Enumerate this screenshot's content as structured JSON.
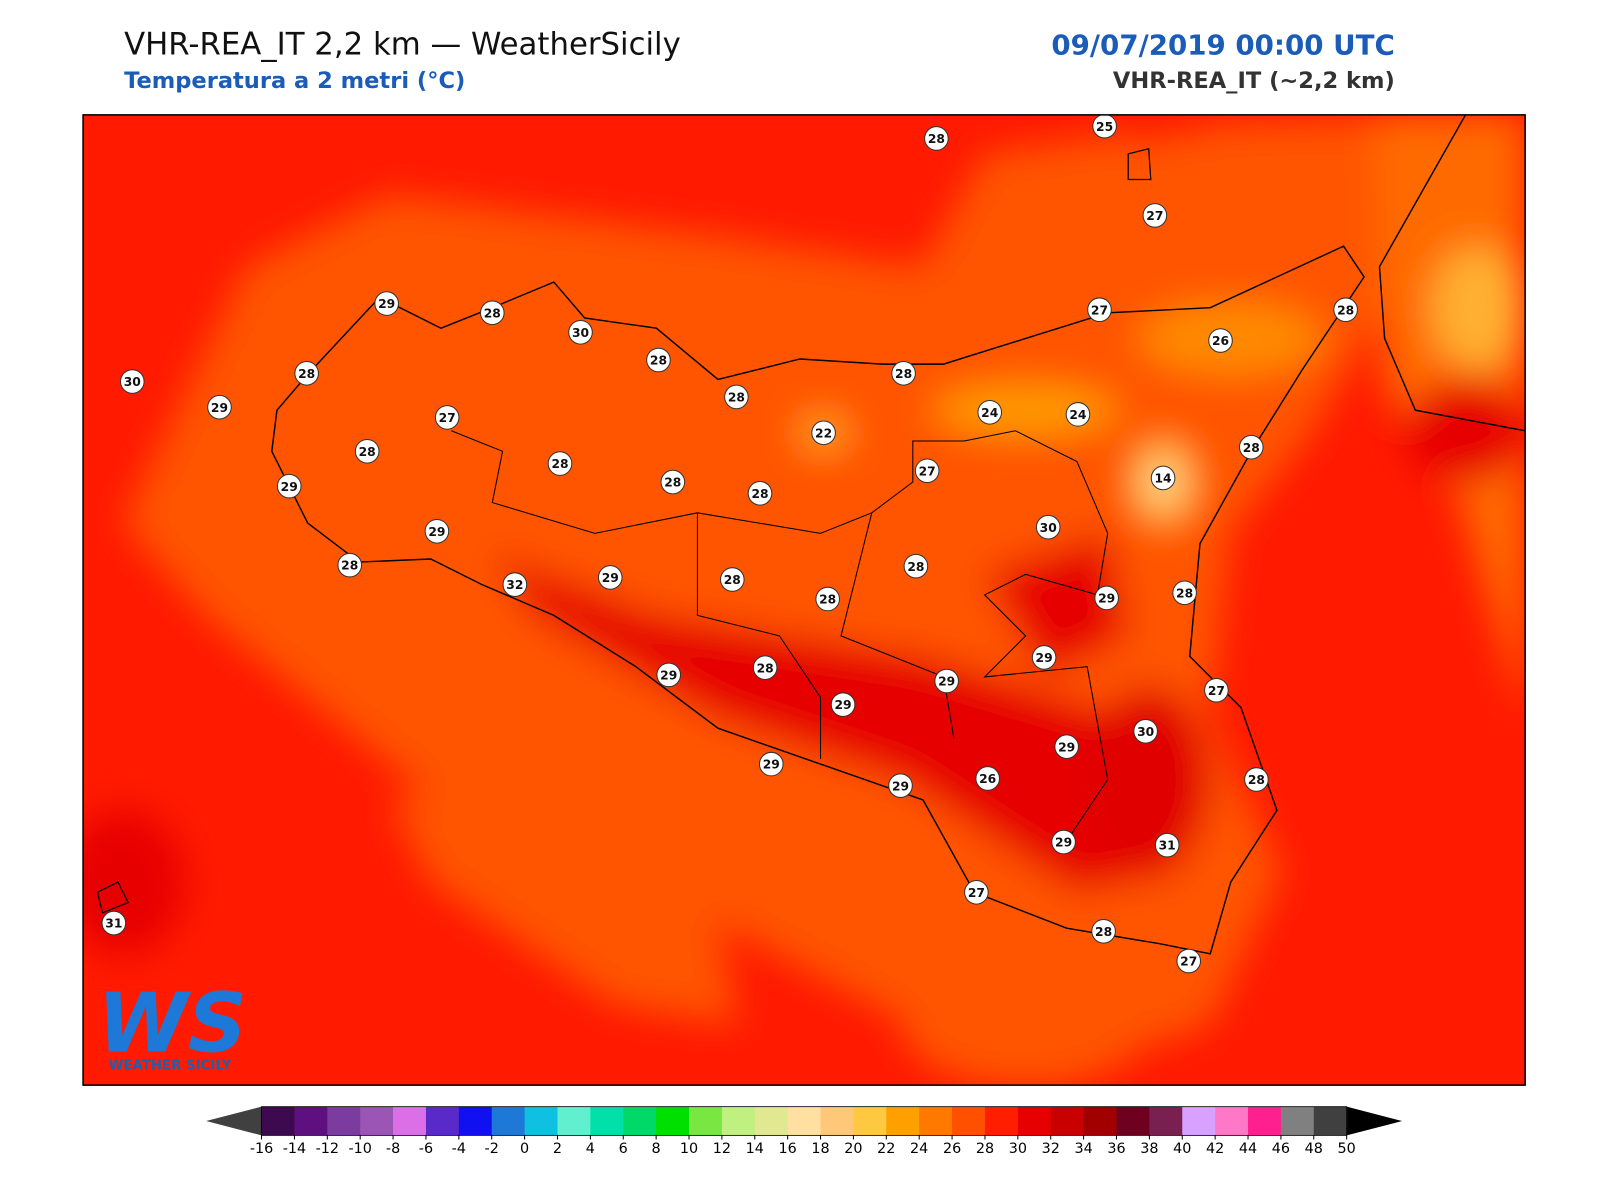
{
  "header": {
    "title": "VHR-REA_IT 2,2 km — WeatherSicily",
    "subtitle": "Temperatura a 2 metri (°C)",
    "date": "09/07/2019 00:00 UTC",
    "model": "VHR-REA_IT (~2,2 km)"
  },
  "logo": {
    "mark": "WS",
    "name": "WEATHER SICILY"
  },
  "stations": [
    {
      "value": 28
    },
    {
      "value": 25
    },
    {
      "value": 27
    },
    {
      "value": 29
    },
    {
      "value": 28
    },
    {
      "value": 30
    },
    {
      "value": 28
    },
    {
      "value": 30
    },
    {
      "value": 28
    },
    {
      "value": 29
    },
    {
      "value": 28
    },
    {
      "value": 28
    },
    {
      "value": 27
    },
    {
      "value": 26
    },
    {
      "value": 28
    },
    {
      "value": 24
    },
    {
      "value": 24
    },
    {
      "value": 22
    },
    {
      "value": 27
    },
    {
      "value": 28
    },
    {
      "value": 28
    },
    {
      "value": 28
    },
    {
      "value": 28
    },
    {
      "value": 27
    },
    {
      "value": 14
    },
    {
      "value": 28
    },
    {
      "value": 29
    },
    {
      "value": 29
    },
    {
      "value": 30
    },
    {
      "value": 28
    },
    {
      "value": 32
    },
    {
      "value": 29
    },
    {
      "value": 28
    },
    {
      "value": 28
    },
    {
      "value": 28
    },
    {
      "value": 29
    },
    {
      "value": 28
    },
    {
      "value": 29
    },
    {
      "value": 29
    },
    {
      "value": 28
    },
    {
      "value": 29
    },
    {
      "value": 29
    },
    {
      "value": 27
    },
    {
      "value": 29
    },
    {
      "value": 30
    },
    {
      "value": 29
    },
    {
      "value": 29
    },
    {
      "value": 26
    },
    {
      "value": 28
    },
    {
      "value": 29
    },
    {
      "value": 31
    },
    {
      "value": 27
    },
    {
      "value": 28
    },
    {
      "value": 27
    },
    {
      "value": 31
    }
  ],
  "colorbar": {
    "ticks": [
      -16,
      -14,
      -12,
      -10,
      -8,
      -6,
      -4,
      -2,
      0,
      2,
      4,
      6,
      8,
      10,
      12,
      14,
      16,
      18,
      20,
      22,
      24,
      26,
      28,
      30,
      32,
      34,
      36,
      38,
      40,
      42,
      44,
      46,
      48,
      50
    ],
    "colors": [
      "#3d0a4f",
      "#5e1080",
      "#7b3ba0",
      "#9b55b5",
      "#dc6fe8",
      "#5a2ac8",
      "#1010f0",
      "#1e78d8",
      "#10c0e0",
      "#60f0d0",
      "#00e0a8",
      "#00d868",
      "#00e000",
      "#78e840",
      "#c0f080",
      "#e0e890",
      "#ffe0a0",
      "#ffc878",
      "#ffc840",
      "#ffa000",
      "#ff7800",
      "#ff5000",
      "#ff1e00",
      "#e60000",
      "#c80000",
      "#a00000",
      "#6e0020",
      "#7a2050",
      "#d8a0ff",
      "#ff78c8",
      "#ff2090",
      "#808080",
      "#404040"
    ],
    "under": "#404040",
    "over": "#000000"
  }
}
